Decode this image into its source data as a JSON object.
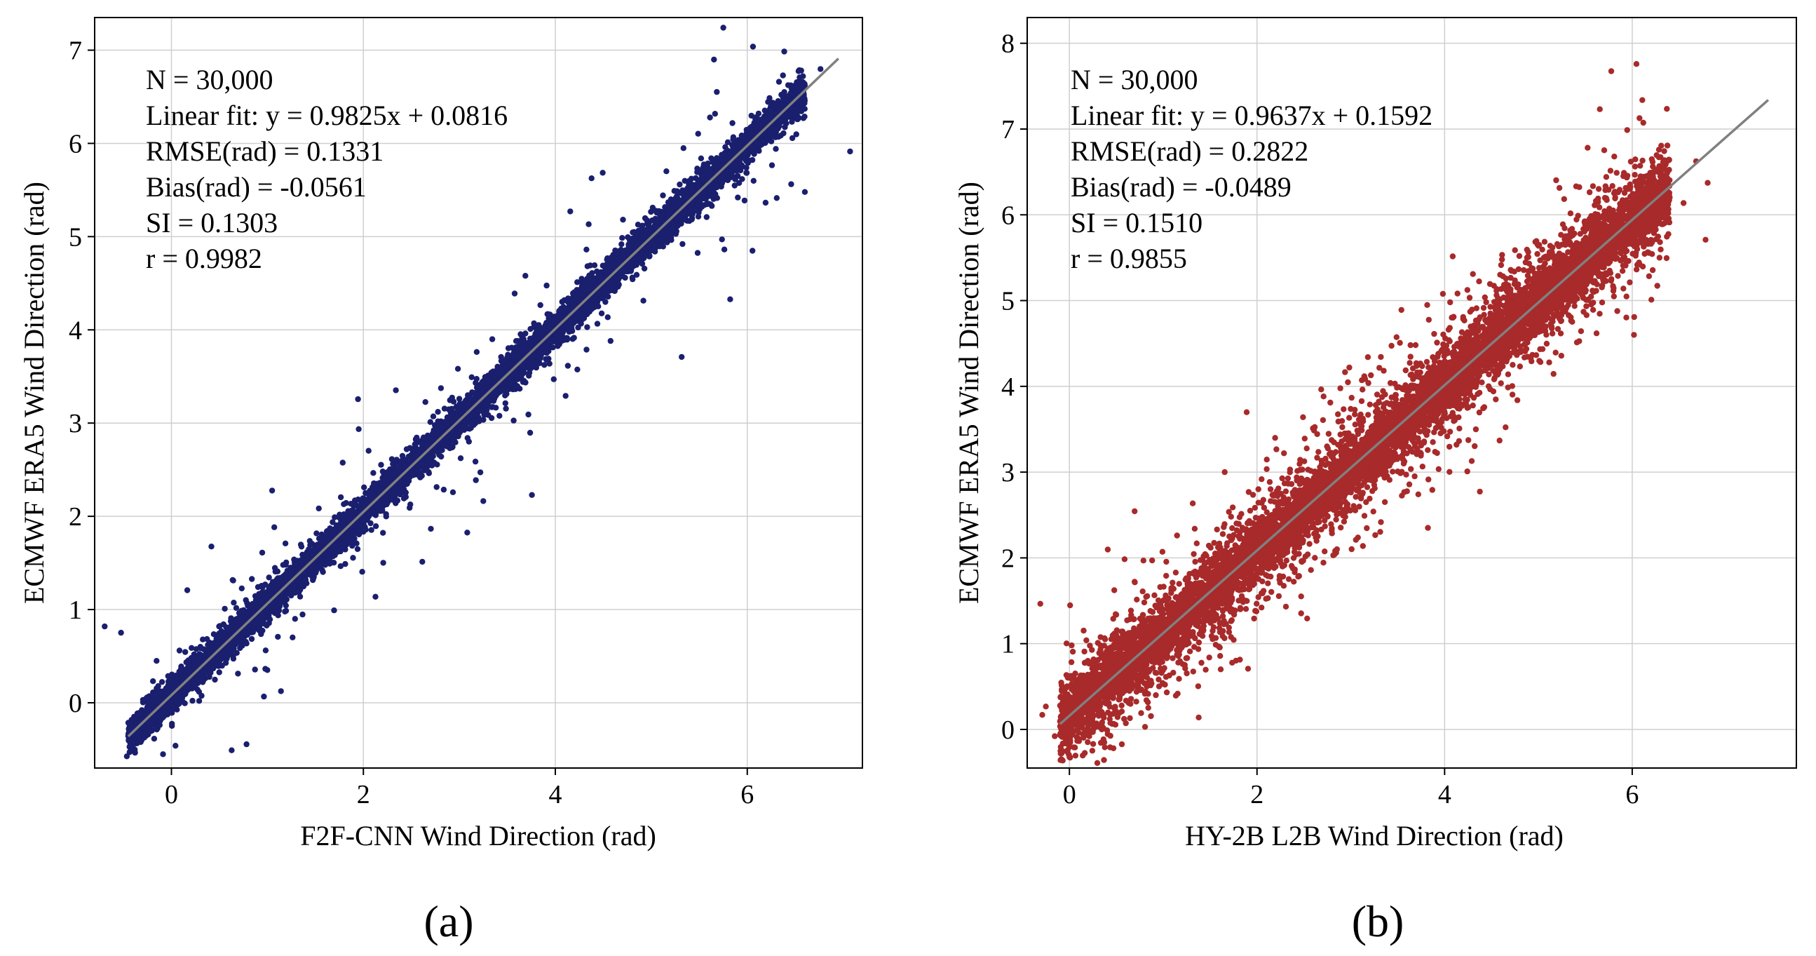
{
  "figure": {
    "panel_captions": [
      "(a)",
      "(b)"
    ]
  },
  "chart_data": [
    {
      "type": "scatter",
      "panel_label": "(a)",
      "xlabel": "F2F-CNN Wind Direction (rad)",
      "ylabel": "ECMWF ERA5 Wind Direction (rad)",
      "xlim": [
        -0.8,
        7.2
      ],
      "ylim": [
        -0.7,
        7.35
      ],
      "xticks": [
        0,
        2,
        4,
        6
      ],
      "yticks": [
        0,
        1,
        2,
        3,
        4,
        5,
        6,
        7
      ],
      "grid": true,
      "legend": "none",
      "point_color": "#1a1f6e",
      "fit_line_color": "#808080",
      "fit": {
        "slope": 0.9825,
        "intercept": 0.0816,
        "x_range": [
          -0.45,
          6.95
        ]
      },
      "stats": {
        "n": "N = 30,000",
        "fit_text": "Linear fit: y = 0.9825x + 0.0816",
        "rmse": "RMSE(rad) = 0.1331",
        "bias": "Bias(rad) = -0.0561",
        "si": "SI = 0.1303",
        "r": "r = 0.9982"
      },
      "scatter_model": {
        "spread": 0.09,
        "x_min": -0.45,
        "x_max": 6.6,
        "wide_spread": 0.0,
        "outlier_fraction": 0.02,
        "seed": 7,
        "n_drawn": 9000
      }
    },
    {
      "type": "scatter",
      "panel_label": "(b)",
      "xlabel": "HY-2B L2B Wind Direction (rad)",
      "ylabel": "ECMWF ERA5 Wind Direction (rad)",
      "xlim": [
        -0.45,
        7.75
      ],
      "ylim": [
        -0.45,
        8.3
      ],
      "xticks": [
        0,
        2,
        4,
        6
      ],
      "yticks": [
        0,
        1,
        2,
        3,
        4,
        5,
        6,
        7,
        8
      ],
      "grid": true,
      "legend": "none",
      "point_color": "#a82a2a",
      "fit_line_color": "#808080",
      "fit": {
        "slope": 0.9637,
        "intercept": 0.1592,
        "x_range": [
          -0.1,
          7.45
        ]
      },
      "stats": {
        "n": "N = 30,000",
        "fit_text": "Linear fit: y = 0.9637x + 0.1592",
        "rmse": "RMSE(rad) = 0.2822",
        "bias": "Bias(rad) = -0.0489",
        "si": "SI = 0.1510",
        "r": "r = 0.9855"
      },
      "scatter_model": {
        "spread": 0.2,
        "x_min": -0.1,
        "x_max": 6.4,
        "wide_spread": 0.55,
        "outlier_fraction": 0.05,
        "seed": 11,
        "n_drawn": 9000
      }
    }
  ]
}
